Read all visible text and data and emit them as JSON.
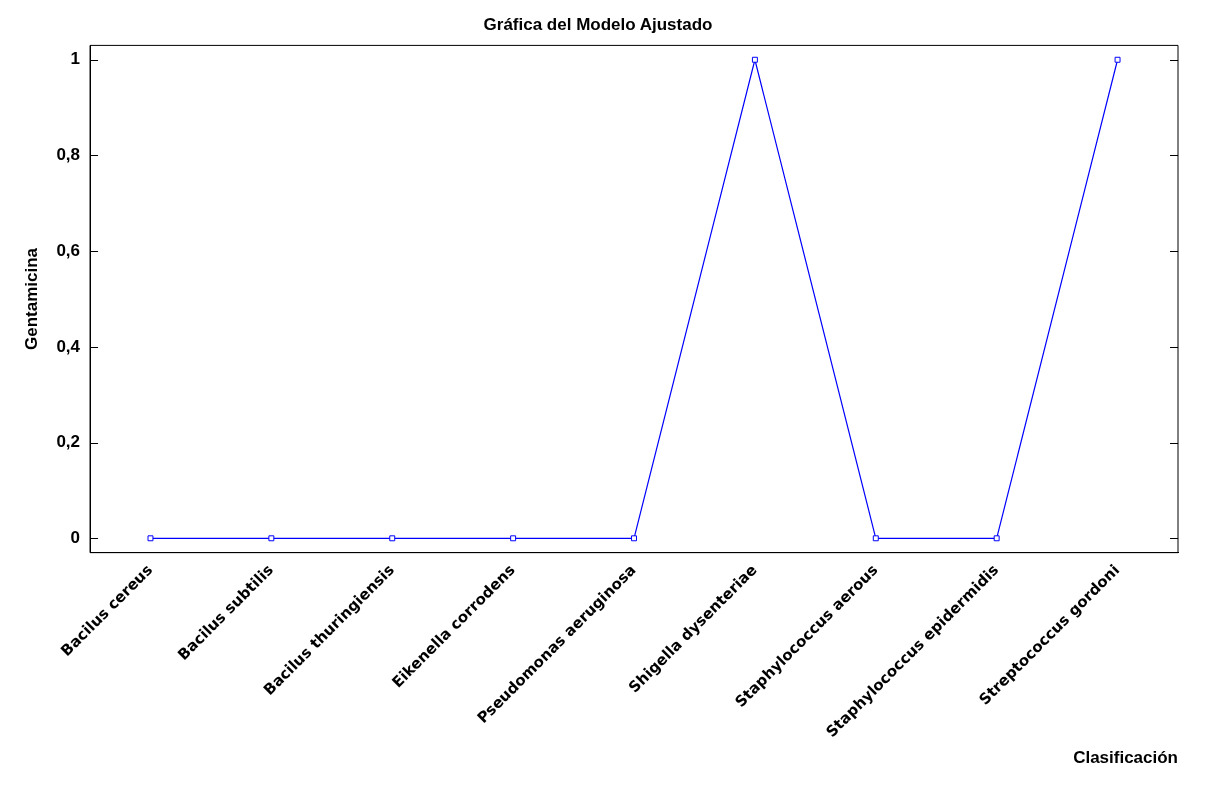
{
  "chart_data": {
    "type": "line",
    "title": "Gráfica del Modelo Ajustado",
    "xlabel": "Clasificación",
    "ylabel": "Gentamicina",
    "categories": [
      "Bacilus cereus",
      "Bacilus subtilis",
      "Bacilus thuringiensis",
      "Eikenella corrodens",
      "Pseudomonas aeruginosa",
      "Shigella dysenteriae",
      "Staphylococcus aerous",
      "Staphylococcus epidermidis",
      "Streptococcus gordoni"
    ],
    "series": [
      {
        "color": "#0000ff",
        "values": [
          0,
          0,
          0,
          0,
          0,
          1,
          0,
          0,
          1
        ]
      }
    ],
    "ylim": [
      -0.03,
      1.03
    ],
    "yticks": [
      {
        "value": 0,
        "label": "0"
      },
      {
        "value": 0.2,
        "label": "0,2"
      },
      {
        "value": 0.4,
        "label": "0,4"
      },
      {
        "value": 0.6,
        "label": "0,6"
      },
      {
        "value": 0.8,
        "label": "0,8"
      },
      {
        "value": 1,
        "label": "1"
      }
    ],
    "marker": "square",
    "line_style": "solid",
    "legend": false
  }
}
